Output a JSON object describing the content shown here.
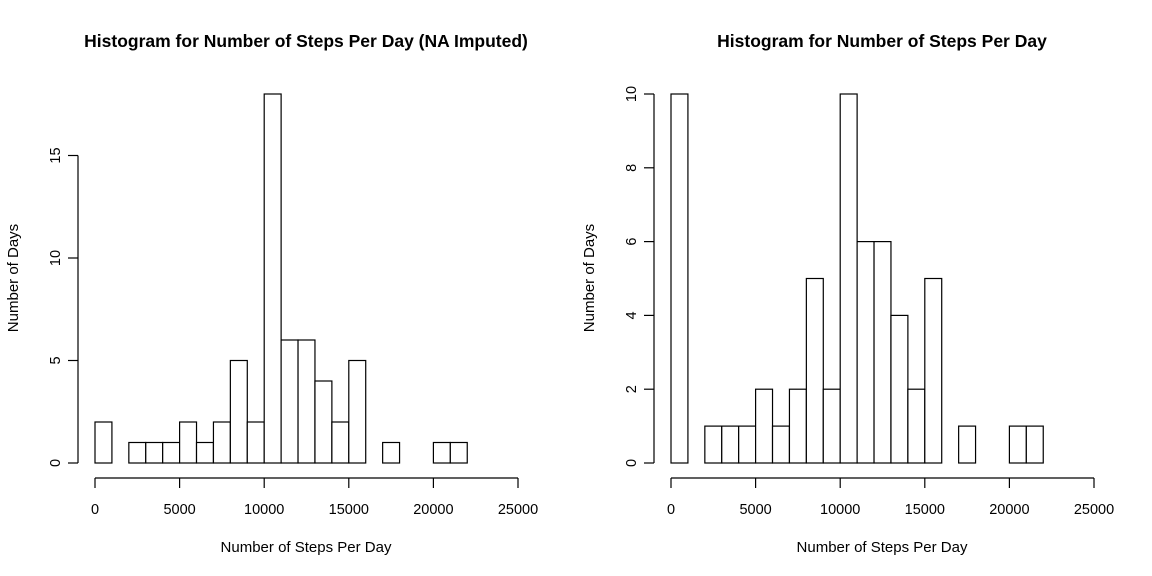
{
  "chart_data": [
    {
      "type": "bar",
      "title": "Histogram for Number of Steps Per Day (NA Imputed)",
      "xlabel": "Number of Steps Per Day",
      "ylabel": "Number of Days",
      "bin_width": 1000,
      "x": [
        0,
        1000,
        2000,
        3000,
        4000,
        5000,
        6000,
        7000,
        8000,
        9000,
        10000,
        11000,
        12000,
        13000,
        14000,
        15000,
        16000,
        17000,
        18000,
        19000,
        20000,
        21000
      ],
      "values": [
        2,
        0,
        1,
        1,
        1,
        2,
        1,
        2,
        5,
        2,
        18,
        6,
        6,
        4,
        2,
        5,
        0,
        1,
        0,
        0,
        1,
        1
      ],
      "xlim": [
        0,
        25000
      ],
      "ylim": [
        0,
        18
      ],
      "xticks": [
        0,
        5000,
        10000,
        15000,
        20000,
        25000
      ],
      "xtick_labels": [
        "0",
        "5000",
        "10000",
        "15000",
        "20000",
        "25000"
      ],
      "yticks": [
        0,
        5,
        10,
        15
      ],
      "ytick_labels": [
        "0",
        "5",
        "10",
        "15"
      ],
      "grid": false
    },
    {
      "type": "bar",
      "title": "Histogram for Number of Steps Per Day",
      "xlabel": "Number of Steps Per Day",
      "ylabel": "Number of Days",
      "bin_width": 1000,
      "x": [
        0,
        1000,
        2000,
        3000,
        4000,
        5000,
        6000,
        7000,
        8000,
        9000,
        10000,
        11000,
        12000,
        13000,
        14000,
        15000,
        16000,
        17000,
        18000,
        19000,
        20000,
        21000
      ],
      "values": [
        10,
        0,
        1,
        1,
        1,
        2,
        1,
        2,
        5,
        2,
        10,
        6,
        6,
        4,
        2,
        5,
        0,
        1,
        0,
        0,
        1,
        1
      ],
      "xlim": [
        0,
        25000
      ],
      "ylim": [
        0,
        10
      ],
      "xticks": [
        0,
        5000,
        10000,
        15000,
        20000,
        25000
      ],
      "xtick_labels": [
        "0",
        "5000",
        "10000",
        "15000",
        "20000",
        "25000"
      ],
      "yticks": [
        0,
        2,
        4,
        6,
        8,
        10
      ],
      "ytick_labels": [
        "0",
        "2",
        "4",
        "6",
        "8",
        "10"
      ],
      "grid": false
    }
  ]
}
